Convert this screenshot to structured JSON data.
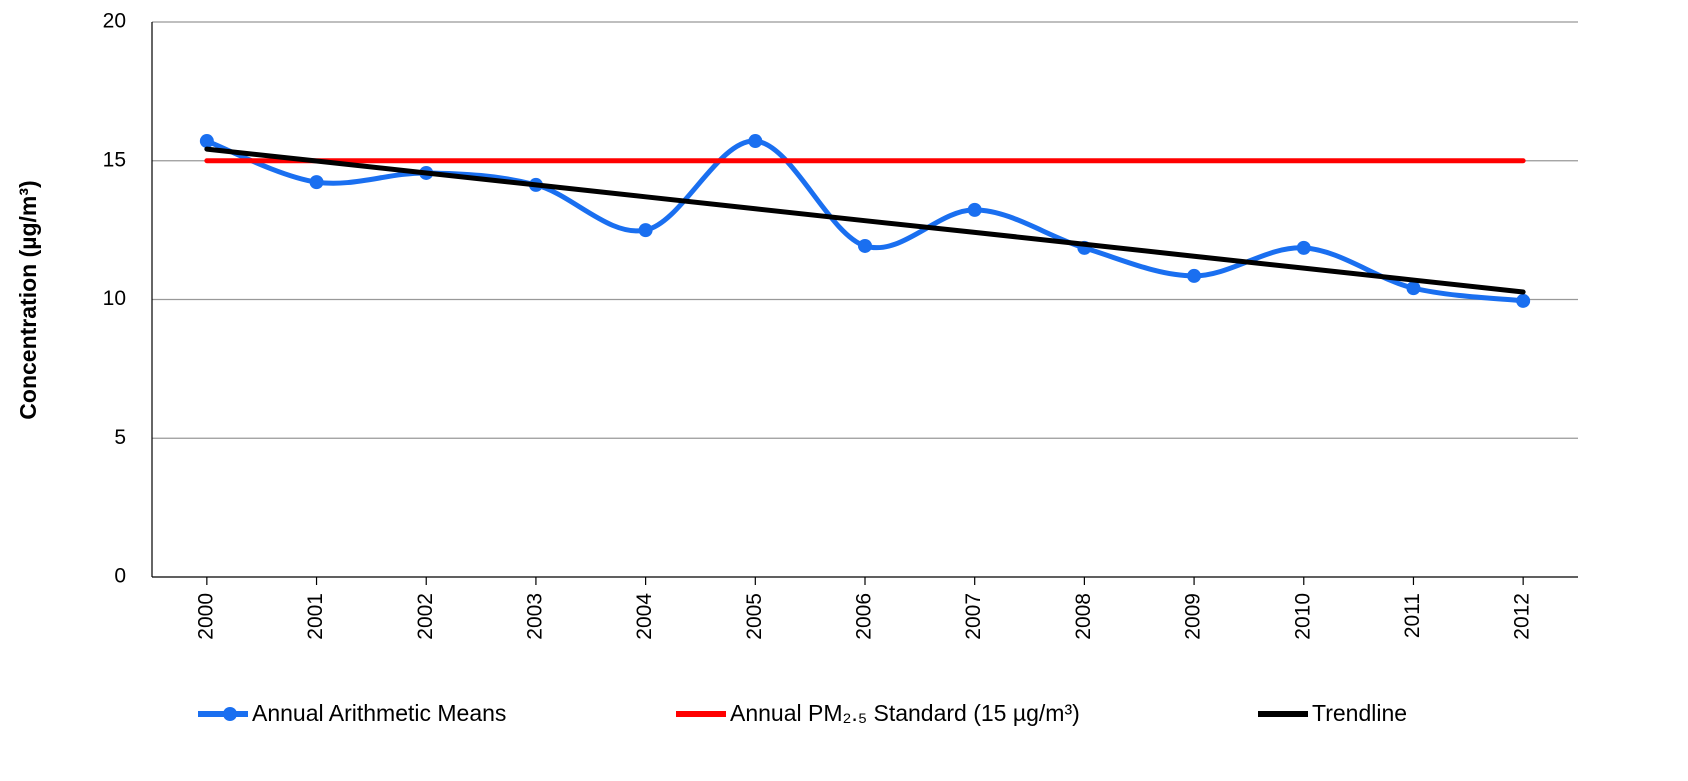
{
  "chart_data": {
    "type": "line",
    "y_label": "Concentration (µg/m³)",
    "categories": [
      "2000",
      "2001",
      "2002",
      "2003",
      "2004",
      "2005",
      "2006",
      "2007",
      "2008",
      "2009",
      "2010",
      "2011",
      "2012"
    ],
    "series": [
      {
        "name": "Annual Arithmetic Means",
        "color": "#1a6ff0",
        "smooth": true,
        "markers": true,
        "values": [
          15.71,
          14.23,
          14.56,
          14.13,
          12.5,
          15.71,
          11.93,
          13.23,
          11.86,
          10.85,
          11.86,
          10.41,
          9.95
        ]
      },
      {
        "name": "Annual PM₂.₅ Standard (15 µg/m³)",
        "color": "#ff0000",
        "smooth": false,
        "markers": false,
        "values": [
          15,
          15,
          15,
          15,
          15,
          15,
          15,
          15,
          15,
          15,
          15,
          15,
          15
        ]
      },
      {
        "name": "Trendline",
        "color": "#000000",
        "smooth": false,
        "markers": false,
        "values": [
          15.42,
          14.99,
          14.56,
          14.13,
          13.7,
          13.27,
          12.84,
          12.42,
          11.99,
          11.56,
          11.13,
          10.7,
          10.27
        ]
      }
    ],
    "ylim": [
      0,
      20
    ],
    "yticks": [
      0,
      5,
      10,
      15,
      20
    ],
    "grid": true,
    "legend": "bottom"
  }
}
